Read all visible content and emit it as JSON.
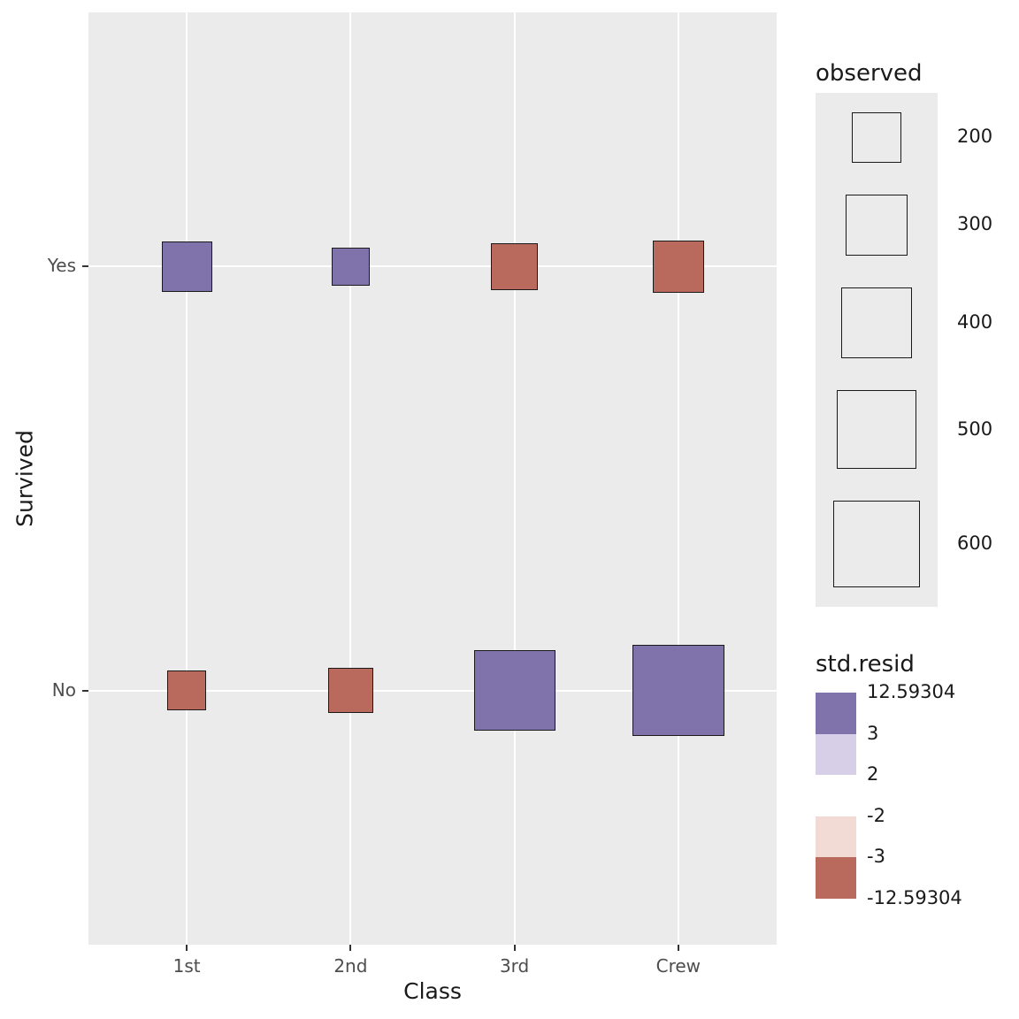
{
  "chart_data": {
    "type": "scatter",
    "variant": "count-squares",
    "title": "",
    "xlabel": "Class",
    "ylabel": "Survived",
    "x_categories": [
      "1st",
      "2nd",
      "3rd",
      "Crew"
    ],
    "y_categories": [
      "Yes",
      "No"
    ],
    "grid": "major-white-on-gray",
    "legend_position": "right",
    "colors": {
      "positive": "#8073ac",
      "positive_light": "#d6cfe7",
      "negative_light": "#f3dbd5",
      "negative": "#ba6a5d",
      "panel_bg": "#ebebeb",
      "gridline": "#ffffff"
    },
    "points": [
      {
        "class": "1st",
        "survived": "Yes",
        "observed": 203,
        "resid_sign": "positive"
      },
      {
        "class": "2nd",
        "survived": "Yes",
        "observed": 118,
        "resid_sign": "positive"
      },
      {
        "class": "3rd",
        "survived": "Yes",
        "observed": 178,
        "resid_sign": "negative"
      },
      {
        "class": "Crew",
        "survived": "Yes",
        "observed": 212,
        "resid_sign": "negative"
      },
      {
        "class": "1st",
        "survived": "No",
        "observed": 122,
        "resid_sign": "negative"
      },
      {
        "class": "2nd",
        "survived": "No",
        "observed": 167,
        "resid_sign": "negative"
      },
      {
        "class": "3rd",
        "survived": "No",
        "observed": 528,
        "resid_sign": "positive"
      },
      {
        "class": "Crew",
        "survived": "No",
        "observed": 673,
        "resid_sign": "positive"
      }
    ]
  },
  "legends": {
    "size": {
      "title": "observed",
      "labels": [
        "200",
        "300",
        "400",
        "500",
        "600"
      ],
      "values": [
        200,
        300,
        400,
        500,
        600
      ]
    },
    "fill": {
      "title": "std.resid",
      "break_labels": [
        "12.59304",
        "3",
        "2",
        "-2",
        "-3",
        "-12.59304"
      ],
      "segment_colors": [
        "#8073ac",
        "#d6cfe7",
        "#ffffff",
        "#f3dbd5",
        "#ba6a5d"
      ]
    }
  }
}
